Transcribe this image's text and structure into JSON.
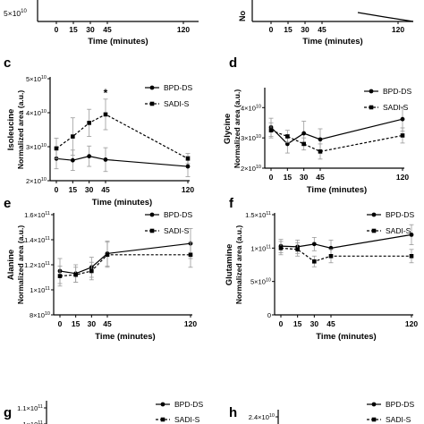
{
  "figure": {
    "top_row_xlabel": "Time (minutes)",
    "top_row_xticks": [
      "0",
      "15",
      "30",
      "45",
      "120"
    ],
    "top_left_ytick": "5×10",
    "top_right_ylabel": "No"
  },
  "chart_data": [
    {
      "type": "line",
      "panel": "c",
      "title": "",
      "ylabel_primary": "Isoleucine",
      "ylabel_secondary": "Normalized area (a.u.)",
      "xlabel": "Time (minutes)",
      "x": [
        0,
        15,
        30,
        45,
        120
      ],
      "xticks": [
        "0",
        "15",
        "30",
        "45",
        "120"
      ],
      "ylim": [
        20000000000.0,
        50000000000.0
      ],
      "yticks": [
        {
          "value": 20000000000.0,
          "mant": "2",
          "exp": "10"
        },
        {
          "value": 30000000000.0,
          "mant": "3",
          "exp": "10"
        },
        {
          "value": 40000000000.0,
          "mant": "4",
          "exp": "10"
        },
        {
          "value": 50000000000.0,
          "mant": "5",
          "exp": "10"
        }
      ],
      "series": [
        {
          "name": "BPD-DS",
          "marker": "circle",
          "dash": false,
          "values": [
            26500000000.0,
            26000000000.0,
            27200000000.0,
            26200000000.0,
            24200000000.0
          ],
          "errors": [
            3000000000.0,
            3000000000.0,
            3000000000.0,
            3500000000.0,
            3000000000.0
          ]
        },
        {
          "name": "SADI-S",
          "marker": "square",
          "dash": true,
          "values": [
            29500000000.0,
            33000000000.0,
            37000000000.0,
            39500000000.0,
            26500000000.0
          ],
          "errors": [
            3000000000.0,
            5500000000.0,
            4000000000.0,
            4500000000.0,
            1500000000.0
          ]
        }
      ],
      "annotations": [
        {
          "text": "*",
          "x": 45
        }
      ]
    },
    {
      "type": "line",
      "panel": "d",
      "title": "",
      "ylabel_primary": "Glycine",
      "ylabel_secondary": "Normalized area (a.u.)",
      "xlabel": "Time (minutes)",
      "x": [
        0,
        15,
        30,
        45,
        120
      ],
      "xticks": [
        "0",
        "15",
        "30",
        "45",
        "120"
      ],
      "ylim": [
        20000000000.0,
        46000000000.0
      ],
      "yticks": [
        {
          "value": 20000000000.0,
          "mant": "2",
          "exp": "10"
        },
        {
          "value": 30000000000.0,
          "mant": "3",
          "exp": "10"
        },
        {
          "value": 40000000000.0,
          "mant": "4",
          "exp": "10"
        }
      ],
      "series": [
        {
          "name": "BPD-DS",
          "marker": "circle",
          "dash": false,
          "values": [
            33500000000.0,
            28000000000.0,
            31500000000.0,
            29500000000.0,
            36200000000.0
          ],
          "errors": [
            3000000000.0,
            3000000000.0,
            4000000000.0,
            3500000000.0,
            4000000000.0
          ]
        },
        {
          "name": "SADI-S",
          "marker": "square",
          "dash": true,
          "values": [
            32500000000.0,
            30500000000.0,
            28000000000.0,
            25500000000.0,
            30800000000.0
          ],
          "errors": [
            2500000000.0,
            2000000000.0,
            2000000000.0,
            2500000000.0,
            2500000000.0
          ]
        }
      ]
    },
    {
      "type": "line",
      "panel": "e",
      "title": "",
      "ylabel_primary": "Alanine",
      "ylabel_secondary": "Normalized area (a.u.)",
      "xlabel": "Time (minutes)",
      "x": [
        0,
        15,
        30,
        45,
        120
      ],
      "xticks": [
        "0",
        "15",
        "30",
        "45",
        "120"
      ],
      "ylim": [
        80000000000.0,
        160000000000.0
      ],
      "yticks": [
        {
          "value": 80000000000.0,
          "mant": "8",
          "exp": "10"
        },
        {
          "value": 100000000000.0,
          "mant": "1",
          "exp": "11"
        },
        {
          "value": 120000000000.0,
          "mant": "1.2",
          "exp": "11"
        },
        {
          "value": 140000000000.0,
          "mant": "1.4",
          "exp": "11"
        },
        {
          "value": 160000000000.0,
          "mant": "1.6",
          "exp": "11"
        }
      ],
      "series": [
        {
          "name": "BPD-DS",
          "marker": "circle",
          "dash": false,
          "values": [
            115000000000.0,
            113000000000.0,
            118000000000.0,
            129000000000.0,
            137000000000.0
          ],
          "errors": [
            10000000000.0,
            7000000000.0,
            8000000000.0,
            10000000000.0,
            12000000000.0
          ]
        },
        {
          "name": "SADI-S",
          "marker": "square",
          "dash": true,
          "values": [
            111000000000.0,
            112000000000.0,
            115000000000.0,
            128000000000.0,
            128000000000.0
          ],
          "errors": [
            8000000000.0,
            6000000000.0,
            7000000000.0,
            10000000000.0,
            10000000000.0
          ]
        }
      ]
    },
    {
      "type": "line",
      "panel": "f",
      "title": "",
      "ylabel_primary": "Glutamine",
      "ylabel_secondary": "Normalized area (a.u.)",
      "xlabel": "Time (minutes)",
      "x": [
        0,
        15,
        30,
        45,
        120
      ],
      "xticks": [
        "0",
        "15",
        "30",
        "45",
        "120"
      ],
      "ylim": [
        0,
        150000000000.0
      ],
      "yticks": [
        {
          "value": 0,
          "mant": "0",
          "exp": ""
        },
        {
          "value": 50000000000.0,
          "mant": "5",
          "exp": "10"
        },
        {
          "value": 100000000000.0,
          "mant": "1",
          "exp": "11"
        },
        {
          "value": 150000000000.0,
          "mant": "1.5",
          "exp": "11"
        }
      ],
      "series": [
        {
          "name": "BPD-DS",
          "marker": "circle",
          "dash": false,
          "values": [
            103000000000.0,
            102000000000.0,
            106000000000.0,
            100000000000.0,
            120000000000.0
          ],
          "errors": [
            10000000000.0,
            10000000000.0,
            10000000000.0,
            12000000000.0,
            15000000000.0
          ]
        },
        {
          "name": "SADI-S",
          "marker": "square",
          "dash": true,
          "values": [
            100000000000.0,
            98000000000.0,
            80000000000.0,
            88000000000.0,
            88000000000.0
          ],
          "errors": [
            10000000000.0,
            10000000000.0,
            8000000000.0,
            10000000000.0,
            10000000000.0
          ]
        }
      ]
    },
    {
      "type": "line",
      "panel": "g",
      "partial": true,
      "ylim": [
        100000000000.0,
        110000000000.0
      ],
      "yticks": [
        {
          "value": 110000000000.0,
          "mant": "1.1",
          "exp": "11"
        },
        {
          "value": 100000000000.0,
          "mant": "1",
          "exp": "11"
        }
      ],
      "series": [
        {
          "name": "BPD-DS",
          "marker": "circle",
          "dash": false
        },
        {
          "name": "SADI-S",
          "marker": "square",
          "dash": true
        }
      ]
    },
    {
      "type": "line",
      "panel": "h",
      "partial": true,
      "yticks": [
        {
          "value": 24000000000.0,
          "mant": "2.4",
          "exp": "10"
        }
      ],
      "series": [
        {
          "name": "BPD-DS",
          "marker": "circle",
          "dash": false
        },
        {
          "name": "SADI-S",
          "marker": "square",
          "dash": true
        }
      ]
    }
  ]
}
